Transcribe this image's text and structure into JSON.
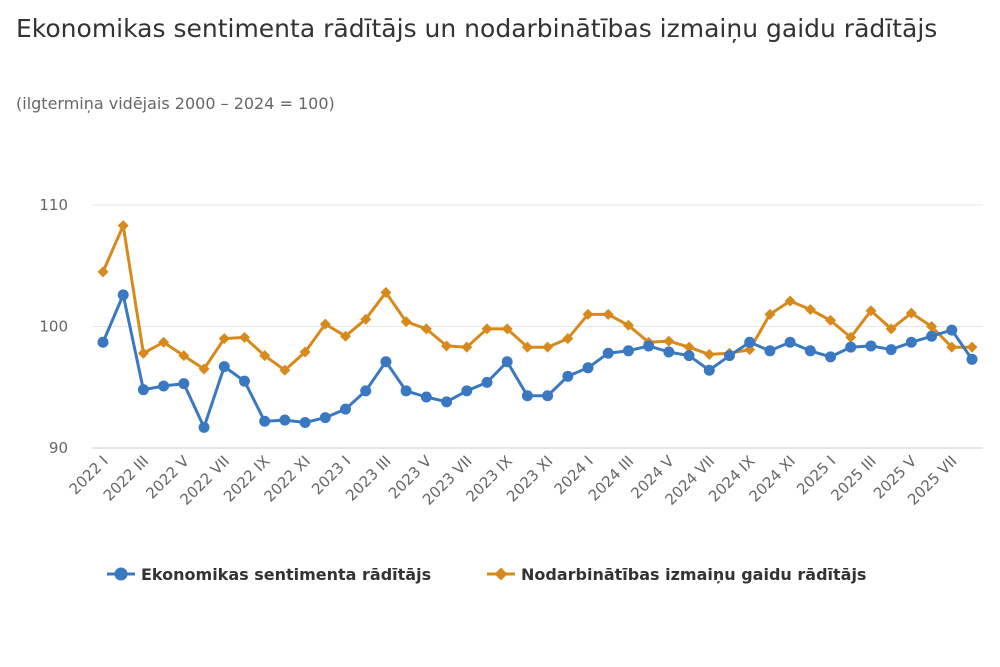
{
  "chart_data": {
    "type": "line",
    "title": "Ekonomikas sentimenta rādītājs un nodarbinātības izmaiņu gaidu rādītājs",
    "subtitle": "(ilgtermiņa vidējais 2000 – 2024 = 100)",
    "xlabel": "",
    "ylabel": "",
    "ylim": [
      90,
      110
    ],
    "yticks": [
      "90",
      "100",
      "110"
    ],
    "grid": true,
    "legend_position": "bottom",
    "tick_labels": [
      "2022 I",
      "2022 III",
      "2022 V",
      "2022 VII",
      "2022 IX",
      "2022 XI",
      "2023 I",
      "2023 III",
      "2023 V",
      "2023 VII",
      "2023 IX",
      "2023 XI",
      "2024 I",
      "2024 III",
      "2024 V",
      "2024 VII",
      "2024 IX",
      "2024 XI",
      "2025 I",
      "2025 III",
      "2025 V",
      "2025 VII"
    ],
    "x": [
      "2022 I",
      "2022 II",
      "2022 III",
      "2022 IV",
      "2022 V",
      "2022 VI",
      "2022 VII",
      "2022 VIII",
      "2022 IX",
      "2022 X",
      "2022 XI",
      "2022 XII",
      "2023 I",
      "2023 II",
      "2023 III",
      "2023 IV",
      "2023 V",
      "2023 VI",
      "2023 VII",
      "2023 VIII",
      "2023 IX",
      "2023 X",
      "2023 XI",
      "2023 XII",
      "2024 I",
      "2024 II",
      "2024 III",
      "2024 IV",
      "2024 V",
      "2024 VI",
      "2024 VII",
      "2024 VIII",
      "2024 IX",
      "2024 X",
      "2024 XI",
      "2024 XII",
      "2025 I",
      "2025 II",
      "2025 III",
      "2025 IV",
      "2025 V",
      "2025 VI",
      "2025 VII",
      "2025 VIII"
    ],
    "series": [
      {
        "name": "Ekonomikas sentimenta rādītājs",
        "color": "#3a78c2",
        "marker": "circle",
        "values": [
          98.7,
          102.6,
          94.8,
          95.1,
          95.3,
          91.7,
          96.7,
          95.5,
          92.2,
          92.3,
          92.1,
          92.5,
          93.2,
          94.7,
          97.1,
          94.7,
          94.2,
          93.8,
          94.7,
          95.4,
          97.1,
          94.3,
          94.3,
          95.9,
          96.6,
          97.8,
          98.0,
          98.4,
          97.9,
          97.6,
          96.4,
          97.6,
          98.7,
          98.0,
          98.7,
          98.0,
          97.5,
          98.3,
          98.4,
          98.1,
          98.7,
          99.2,
          99.7,
          97.3
        ]
      },
      {
        "name": "Nodarbinātības izmaiņu gaidu rādītājs",
        "color": "#d8891b",
        "marker": "diamond",
        "values": [
          104.5,
          108.3,
          97.8,
          98.7,
          97.6,
          96.5,
          99.0,
          99.1,
          97.6,
          96.4,
          97.9,
          100.2,
          99.2,
          100.6,
          102.8,
          100.4,
          99.8,
          98.4,
          98.3,
          99.8,
          99.8,
          98.3,
          98.3,
          99.0,
          101.0,
          101.0,
          100.1,
          98.7,
          98.8,
          98.3,
          97.7,
          97.8,
          98.1,
          101.0,
          102.1,
          101.4,
          100.5,
          99.1,
          101.3,
          99.8,
          101.1,
          100.0,
          98.3,
          98.3
        ]
      }
    ]
  }
}
